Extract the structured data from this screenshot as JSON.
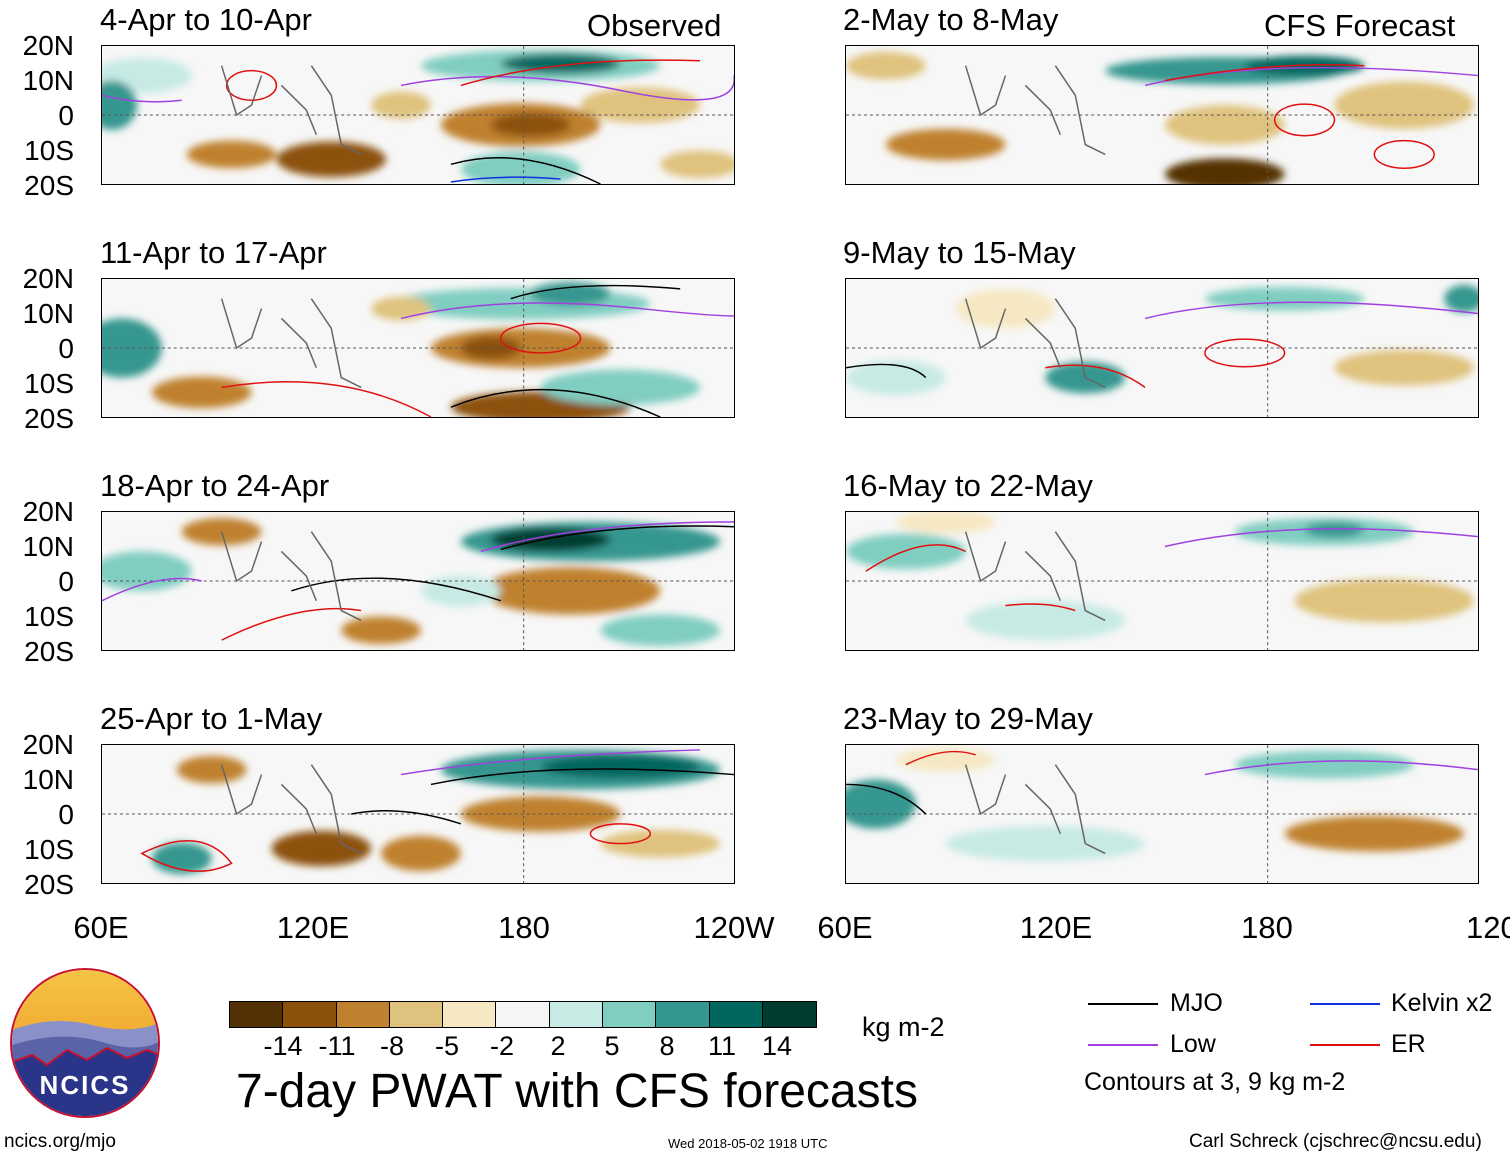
{
  "observed_label": "Observed",
  "forecast_label": "CFS Forecast",
  "latitudes": [
    "20N",
    "10N",
    "0",
    "10S",
    "20S"
  ],
  "longitudes": [
    "60E",
    "120E",
    "180",
    "120W"
  ],
  "observed_panels": [
    {
      "title": "4-Apr to 10-Apr"
    },
    {
      "title": "11-Apr to 17-Apr"
    },
    {
      "title": "18-Apr to 24-Apr"
    },
    {
      "title": "25-Apr to 1-May"
    }
  ],
  "forecast_panels": [
    {
      "title": "2-May to 8-May"
    },
    {
      "title": "9-May to 15-May"
    },
    {
      "title": "16-May to 22-May"
    },
    {
      "title": "23-May to 29-May"
    }
  ],
  "colorbar": {
    "ticks": [
      "-14",
      "-11",
      "-8",
      "-5",
      "-2",
      "2",
      "5",
      "8",
      "11",
      "14"
    ],
    "colors": [
      "#543005",
      "#8c510a",
      "#bf812d",
      "#dfc27d",
      "#f6e8c3",
      "#f5f5f5",
      "#c7eae5",
      "#80cdc1",
      "#35978f",
      "#01665e",
      "#003c30"
    ],
    "units": "kg m-2"
  },
  "main_title": "7-day PWAT with CFS forecasts",
  "legend": {
    "items": [
      {
        "label": "MJO",
        "color": "#000000"
      },
      {
        "label": "Kelvin x2",
        "color": "#1030e0"
      },
      {
        "label": "Low",
        "color": "#a040e0"
      },
      {
        "label": "ER",
        "color": "#e01010"
      }
    ],
    "note": "Contours at 3, 9 kg m-2"
  },
  "logo_text": "NCICS",
  "footer": {
    "url": "ncics.org/mjo",
    "timestamp": "Wed 2018-05-02 1918 UTC",
    "credit": "Carl Schreck (cjschrec@ncsu.edu)"
  }
}
